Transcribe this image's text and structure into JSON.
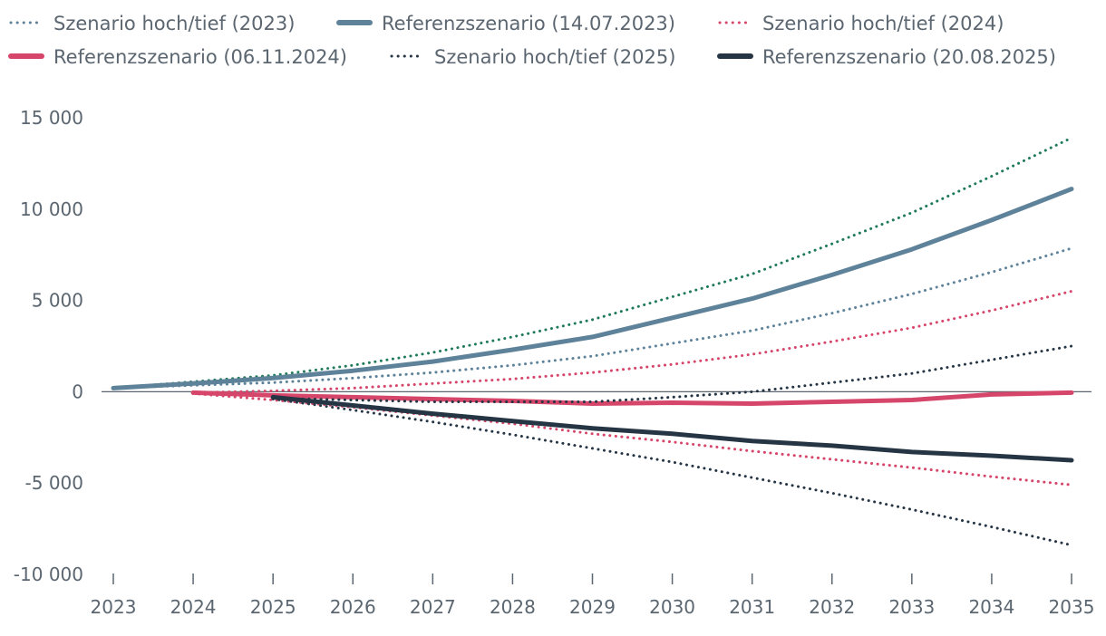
{
  "chart_data": {
    "type": "line",
    "title": "",
    "xlabel": "",
    "ylabel": "",
    "x": [
      2023,
      2024,
      2025,
      2026,
      2027,
      2028,
      2029,
      2030,
      2031,
      2032,
      2033,
      2034,
      2035
    ],
    "x_tick_labels": [
      "2023",
      "2024",
      "2025",
      "2026",
      "2027",
      "2028",
      "2029",
      "2030",
      "2031",
      "2032",
      "2033",
      "2034",
      "2035"
    ],
    "ylim": [
      -10000,
      15000
    ],
    "y_ticks": [
      15000,
      10000,
      5000,
      0,
      -5000,
      -10000
    ],
    "y_tick_labels": [
      "15 000",
      "10 000",
      "5 000",
      "0",
      "-5 000",
      "-10 000"
    ],
    "legend": [
      {
        "label": "Szenario hoch/tief (2023)",
        "color": "#5e8299",
        "style": "dotted"
      },
      {
        "label": "Referenzszenario (14.07.2023)",
        "color": "#5e8299",
        "style": "solid"
      },
      {
        "label": "Szenario hoch/tief (2024)",
        "color": "#d6466a",
        "style": "dotted"
      },
      {
        "label": "Referenzszenario (06.11.2024)",
        "color": "#d6466a",
        "style": "solid"
      },
      {
        "label": "Szenario hoch/tief (2025)",
        "color": "#263544",
        "style": "dotted"
      },
      {
        "label": "Referenzszenario (20.08.2025)",
        "color": "#263544",
        "style": "solid"
      }
    ],
    "series": [
      {
        "name": "Szenario hoch (2023)",
        "color": "#1f7a5a",
        "style": "dotted",
        "width": 3,
        "x": [
          2023,
          2024,
          2025,
          2026,
          2027,
          2028,
          2029,
          2030,
          2031,
          2032,
          2033,
          2034,
          2035
        ],
        "values": [
          200,
          550,
          900,
          1450,
          2150,
          3000,
          3950,
          5200,
          6450,
          8100,
          9800,
          11800,
          13900
        ]
      },
      {
        "name": "Szenario tief (2023)",
        "color": "#5e8299",
        "style": "dotted",
        "width": 3,
        "x": [
          2023,
          2024,
          2025,
          2026,
          2027,
          2028,
          2029,
          2030,
          2031,
          2032,
          2033,
          2034,
          2035
        ],
        "values": [
          200,
          350,
          500,
          750,
          1050,
          1450,
          1950,
          2650,
          3350,
          4300,
          5350,
          6550,
          7850
        ]
      },
      {
        "name": "Referenzszenario (14.07.2023)",
        "color": "#5e8299",
        "style": "solid",
        "width": 5,
        "x": [
          2023,
          2024,
          2025,
          2026,
          2027,
          2028,
          2029,
          2030,
          2031,
          2032,
          2033,
          2034,
          2035
        ],
        "values": [
          200,
          450,
          750,
          1150,
          1650,
          2300,
          3000,
          4050,
          5100,
          6400,
          7800,
          9400,
          11100
        ]
      },
      {
        "name": "Szenario hoch (2024)",
        "color": "#d6466a",
        "style": "dotted",
        "width": 3,
        "x": [
          2024,
          2025,
          2026,
          2027,
          2028,
          2029,
          2030,
          2031,
          2032,
          2033,
          2034,
          2035
        ],
        "values": [
          -50,
          50,
          200,
          450,
          700,
          1050,
          1500,
          2050,
          2750,
          3500,
          4450,
          5500
        ]
      },
      {
        "name": "Szenario tief (2024)",
        "color": "#d6466a",
        "style": "dotted",
        "width": 3,
        "x": [
          2024,
          2025,
          2026,
          2027,
          2028,
          2029,
          2030,
          2031,
          2032,
          2033,
          2034,
          2035
        ],
        "values": [
          -100,
          -450,
          -850,
          -1300,
          -1750,
          -2300,
          -2750,
          -3250,
          -3700,
          -4150,
          -4650,
          -5100
        ]
      },
      {
        "name": "Referenzszenario (06.11.2024)",
        "color": "#d6466a",
        "style": "solid",
        "width": 5,
        "x": [
          2024,
          2025,
          2026,
          2027,
          2028,
          2029,
          2030,
          2031,
          2032,
          2033,
          2034,
          2035
        ],
        "values": [
          -50,
          -200,
          -300,
          -400,
          -500,
          -650,
          -600,
          -650,
          -550,
          -450,
          -150,
          -50
        ]
      },
      {
        "name": "Szenario hoch (2025)",
        "color": "#263544",
        "style": "dotted",
        "width": 3,
        "x": [
          2025,
          2026,
          2027,
          2028,
          2029,
          2030,
          2031,
          2032,
          2033,
          2034,
          2035
        ],
        "values": [
          -350,
          -450,
          -550,
          -550,
          -550,
          -300,
          0,
          500,
          1000,
          1750,
          2500
        ]
      },
      {
        "name": "Szenario tief (2025)",
        "color": "#263544",
        "style": "dotted",
        "width": 3,
        "x": [
          2025,
          2026,
          2027,
          2028,
          2029,
          2030,
          2031,
          2032,
          2033,
          2034,
          2035
        ],
        "values": [
          -400,
          -1000,
          -1650,
          -2350,
          -3100,
          -3850,
          -4700,
          -5550,
          -6450,
          -7400,
          -8400
        ]
      },
      {
        "name": "Referenzszenario (20.08.2025)",
        "color": "#263544",
        "style": "solid",
        "width": 5,
        "x": [
          2025,
          2026,
          2027,
          2028,
          2029,
          2030,
          2031,
          2032,
          2033,
          2034,
          2035
        ],
        "values": [
          -300,
          -750,
          -1200,
          -1600,
          -2000,
          -2300,
          -2700,
          -2950,
          -3300,
          -3500,
          -3750
        ]
      }
    ]
  }
}
